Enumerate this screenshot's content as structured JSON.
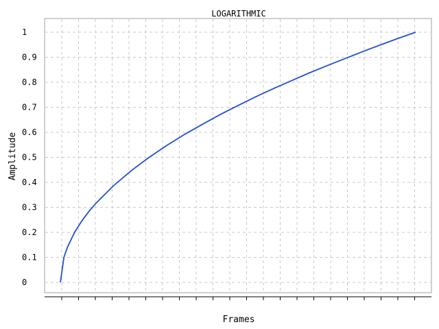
{
  "chart_data": {
    "type": "line",
    "title": "LOGARITHMIC",
    "xlabel": "Frames",
    "ylabel": "Amplitude",
    "ylim": [
      0,
      1
    ],
    "xlim": [
      0,
      1
    ],
    "x_tick_labels_shown": false,
    "y_ticks": [
      {
        "value": 0,
        "label": "0"
      },
      {
        "value": 0.1,
        "label": "0.1"
      },
      {
        "value": 0.2,
        "label": "0.2"
      },
      {
        "value": 0.3,
        "label": "0.3"
      },
      {
        "value": 0.4,
        "label": "0.4"
      },
      {
        "value": 0.5,
        "label": "0.5"
      },
      {
        "value": 0.6,
        "label": "0.6"
      },
      {
        "value": 0.7,
        "label": "0.7"
      },
      {
        "value": 0.8,
        "label": "0.8"
      },
      {
        "value": 0.9,
        "label": "0.9"
      },
      {
        "value": 1,
        "label": "1"
      }
    ],
    "grid": true,
    "series": [
      {
        "color": "#1f4fd1",
        "x": [
          0,
          0.01,
          0.02,
          0.04,
          0.06,
          0.08,
          0.1,
          0.15,
          0.2,
          0.25,
          0.3,
          0.35,
          0.4,
          0.45,
          0.5,
          0.55,
          0.6,
          0.65,
          0.7,
          0.75,
          0.8,
          0.85,
          0.9,
          0.95,
          1.0
        ],
        "y": [
          0.0,
          0.1,
          0.141,
          0.2,
          0.245,
          0.283,
          0.316,
          0.387,
          0.447,
          0.5,
          0.548,
          0.592,
          0.632,
          0.671,
          0.707,
          0.742,
          0.775,
          0.806,
          0.837,
          0.866,
          0.894,
          0.922,
          0.949,
          0.975,
          1.0
        ]
      }
    ]
  }
}
